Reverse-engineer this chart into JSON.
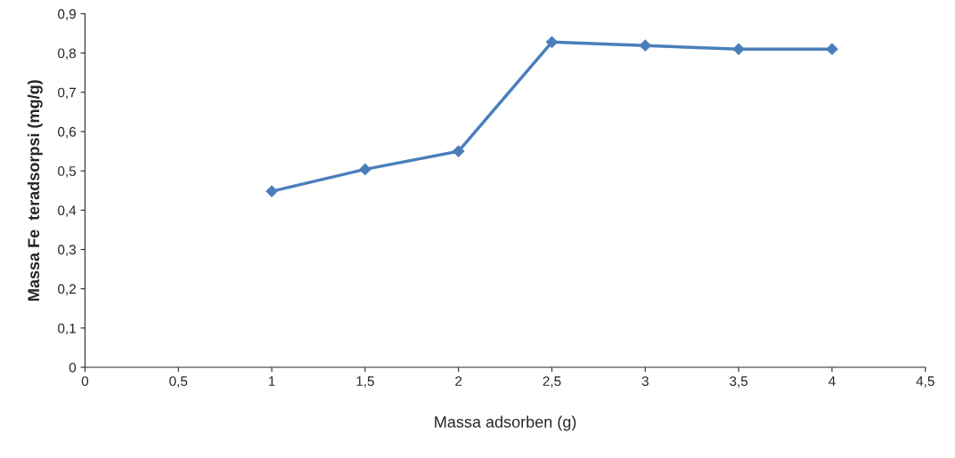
{
  "chart_data": {
    "type": "line",
    "xlabel": "Massa adsorben (g)",
    "ylabel": "Massa Fe  teradsorpsi (mg/g)",
    "x": [
      1,
      1.5,
      2,
      2.5,
      3,
      3.5,
      4
    ],
    "series": [
      {
        "color": "#4a7ebb",
        "values": [
          0.448,
          0.504,
          0.55,
          0.828,
          0.819,
          0.81,
          0.81
        ]
      }
    ],
    "xlim": [
      0,
      4.5
    ],
    "ylim": [
      0,
      0.9
    ],
    "xticks": [
      0,
      {
        "value": 0.5,
        "label": "0,5"
      },
      1,
      {
        "value": 1.5,
        "label": "1,5"
      },
      2,
      {
        "value": 2.5,
        "label": "2,5"
      },
      3,
      {
        "value": 3.5,
        "label": "3,5"
      },
      4,
      {
        "value": 4.5,
        "label": "4,5"
      }
    ],
    "yticks": [
      0,
      {
        "value": 0.1,
        "label": "0,1"
      },
      {
        "value": 0.2,
        "label": "0,2"
      },
      {
        "value": 0.3,
        "label": "0,3"
      },
      {
        "value": 0.4,
        "label": "0,4"
      },
      {
        "value": 0.5,
        "label": "0,5"
      },
      {
        "value": 0.6,
        "label": "0,6"
      },
      {
        "value": 0.7,
        "label": "0,7"
      },
      {
        "value": 0.8,
        "label": "0,8"
      },
      {
        "value": 0.9,
        "label": "0,9"
      }
    ],
    "marker": "diamond",
    "line_style": "solid",
    "grid": false,
    "legend": false
  }
}
